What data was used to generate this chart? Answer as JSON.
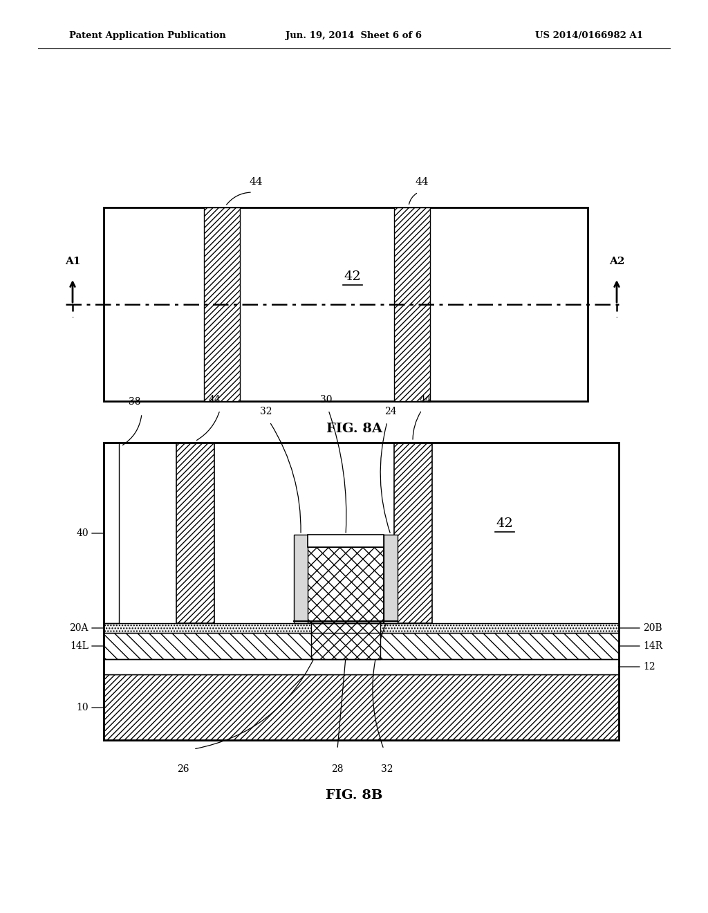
{
  "header_left": "Patent Application Publication",
  "header_center": "Jun. 19, 2014  Sheet 6 of 6",
  "header_right": "US 2014/0166982 A1",
  "fig8a_label": "FIG. 8A",
  "fig8b_label": "FIG. 8B",
  "bg_color": "#ffffff",
  "line_color": "#000000"
}
